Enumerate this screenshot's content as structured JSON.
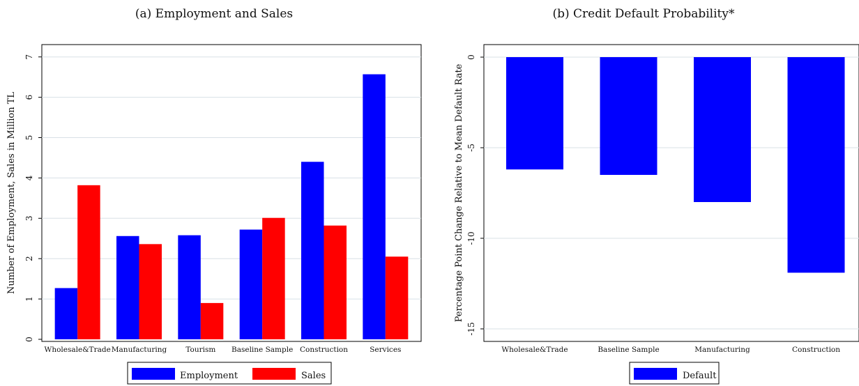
{
  "chart_data": [
    {
      "type": "bar",
      "title": "(a) Employment and Sales",
      "ylabel": "Number of Employment, Sales in Million TL",
      "xlabel": "",
      "ylim": [
        0,
        7
      ],
      "yticks": [
        0,
        1,
        2,
        3,
        4,
        5,
        6,
        7
      ],
      "grid": true,
      "legend_position": "bottom",
      "categories": [
        "Wholesale&Trade",
        "Manufacturing",
        "Tourism",
        "Baseline Sample",
        "Construction",
        "Services"
      ],
      "series": [
        {
          "name": "Employment",
          "color": "#0000ff",
          "values": [
            1.27,
            2.56,
            2.58,
            2.72,
            4.4,
            6.57
          ]
        },
        {
          "name": "Sales",
          "color": "#ff0000",
          "values": [
            3.82,
            2.36,
            0.9,
            3.01,
            2.82,
            2.05
          ]
        }
      ]
    },
    {
      "type": "bar",
      "title": "(b) Credit Default Probability*",
      "ylabel": "Percentage Point Change Relative to Mean Default Rate",
      "xlabel": "",
      "ylim": [
        -15,
        0
      ],
      "yticks": [
        0,
        -5,
        -10,
        -15
      ],
      "grid": true,
      "legend_position": "bottom",
      "categories": [
        "Wholesale&Trade",
        "Baseline Sample",
        "Manufacturing",
        "Construction"
      ],
      "series": [
        {
          "name": "Default",
          "color": "#0000ff",
          "values": [
            -6.2,
            -6.5,
            -8.0,
            -11.9
          ]
        }
      ]
    }
  ]
}
